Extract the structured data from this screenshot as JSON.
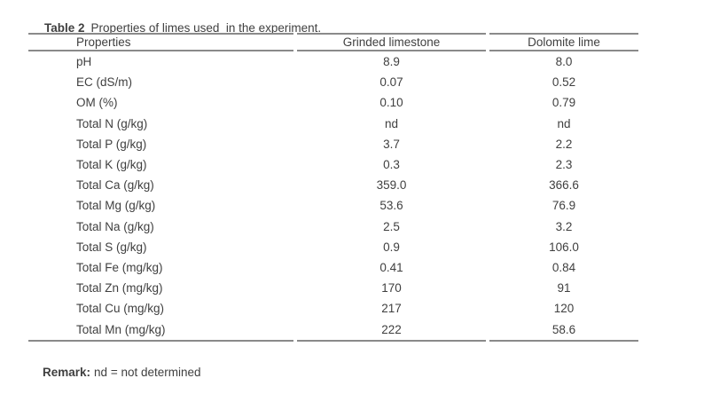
{
  "caption": {
    "label": "Table 2",
    "text": "Properties of limes used  in the experiment."
  },
  "table": {
    "columns": [
      "Properties",
      "Grinded limestone",
      "Dolomite lime"
    ],
    "rows": [
      {
        "property": "pH",
        "grinded_limestone": "8.9",
        "dolomite_lime": "8.0"
      },
      {
        "property": "EC (dS/m)",
        "grinded_limestone": "0.07",
        "dolomite_lime": "0.52"
      },
      {
        "property": "OM (%)",
        "grinded_limestone": "0.10",
        "dolomite_lime": "0.79"
      },
      {
        "property": "Total N (g/kg)",
        "grinded_limestone": "nd",
        "dolomite_lime": "nd"
      },
      {
        "property": "Total P (g/kg)",
        "grinded_limestone": "3.7",
        "dolomite_lime": "2.2"
      },
      {
        "property": "Total K (g/kg)",
        "grinded_limestone": "0.3",
        "dolomite_lime": "2.3"
      },
      {
        "property": "Total Ca (g/kg)",
        "grinded_limestone": "359.0",
        "dolomite_lime": "366.6"
      },
      {
        "property": "Total Mg (g/kg)",
        "grinded_limestone": "53.6",
        "dolomite_lime": "76.9"
      },
      {
        "property": "Total Na (g/kg)",
        "grinded_limestone": "2.5",
        "dolomite_lime": "3.2"
      },
      {
        "property": "Total S (g/kg)",
        "grinded_limestone": "0.9",
        "dolomite_lime": "106.0"
      },
      {
        "property": "Total Fe (mg/kg)",
        "grinded_limestone": "0.41",
        "dolomite_lime": "0.84"
      },
      {
        "property": "Total Zn (mg/kg)",
        "grinded_limestone": "170",
        "dolomite_lime": "91"
      },
      {
        "property": "Total Cu (mg/kg)",
        "grinded_limestone": "217",
        "dolomite_lime": "120"
      },
      {
        "property": "Total Mn (mg/kg)",
        "grinded_limestone": "222",
        "dolomite_lime": "58.6"
      }
    ]
  },
  "remark": {
    "label": "Remark:",
    "text": "nd = not determined"
  },
  "colors": {
    "rule": "#8a8a8a",
    "text": "#3f3f3f",
    "background": "#ffffff"
  }
}
